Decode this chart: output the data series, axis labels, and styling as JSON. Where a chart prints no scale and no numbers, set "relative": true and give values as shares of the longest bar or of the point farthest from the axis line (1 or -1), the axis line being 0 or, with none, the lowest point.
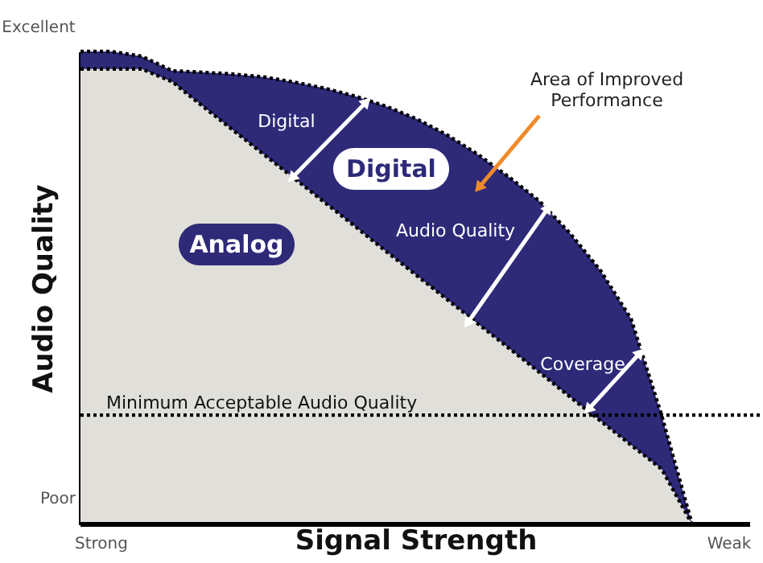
{
  "chart_data": {
    "type": "area",
    "relative": true,
    "xlabel": "Signal Strength",
    "ylabel": "Audio Quality",
    "categories": [
      null,
      null,
      null,
      null,
      null,
      null,
      null,
      null,
      null,
      null,
      null,
      null,
      null,
      null,
      null,
      null,
      null,
      null,
      null,
      null,
      null
    ],
    "series": [
      {
        "name": "Digital",
        "color": "#2e2a78",
        "values": [
          1.0,
          1.0,
          0.99,
          0.959,
          0.956,
          0.952,
          0.946,
          0.935,
          0.922,
          0.905,
          0.884,
          0.857,
          0.823,
          0.782,
          0.735,
          0.684,
          0.616,
          0.537,
          0.435,
          0.231,
          0
        ]
      },
      {
        "name": "Analog",
        "color": "#e1dfda",
        "values": [
          0.963,
          0.963,
          0.963,
          0.936,
          0.884,
          0.833,
          0.782,
          0.731,
          0.68,
          0.629,
          0.577,
          0.526,
          0.475,
          0.424,
          0.373,
          0.322,
          0.27,
          0.219,
          0.168,
          0.117,
          0
        ]
      }
    ],
    "line_style": "dotted",
    "grid": false,
    "ref_lines": [
      {
        "axis": "y",
        "value": 0.231,
        "label": "Minimum Acceptable Audio Quality",
        "color": "#000000",
        "line_style": "dotted"
      }
    ],
    "annotations": [
      "Excellent",
      "Poor",
      "Strong",
      "Weak",
      "Digital",
      "Area of Improved\nPerformance",
      "Audio Quality",
      "Coverage"
    ]
  }
}
